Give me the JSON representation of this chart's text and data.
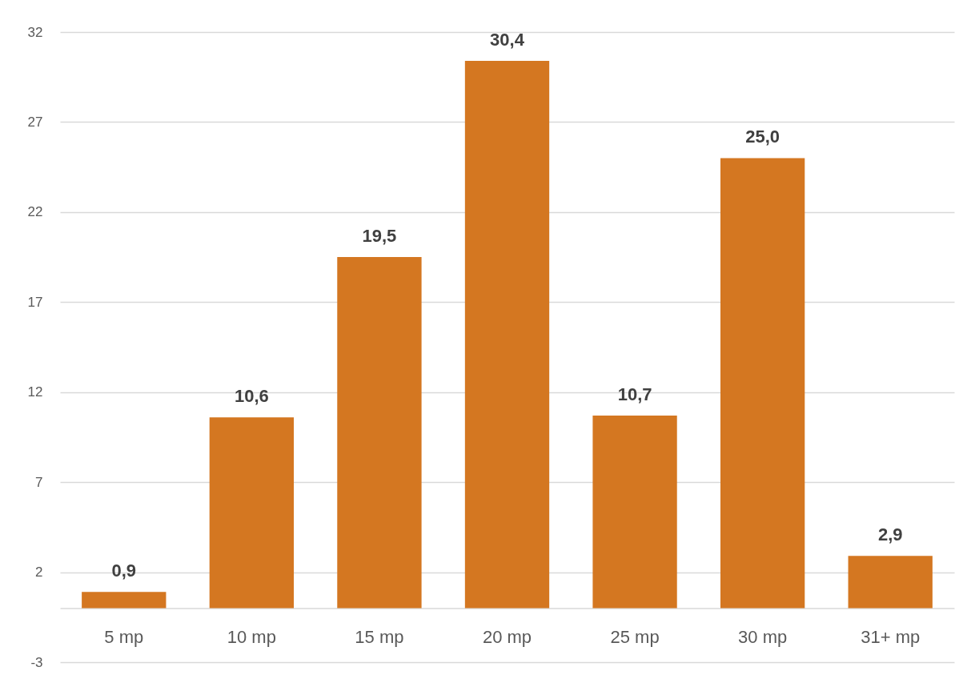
{
  "chart_data": {
    "type": "bar",
    "categories": [
      "5 mp",
      "10 mp",
      "15 mp",
      "20 mp",
      "25 mp",
      "30 mp",
      "31+ mp"
    ],
    "values": [
      0.9,
      10.6,
      19.5,
      30.4,
      10.7,
      25.0,
      2.9
    ],
    "value_labels": [
      "0,9",
      "10,6",
      "19,5",
      "30,4",
      "10,7",
      "25,0",
      "2,9"
    ],
    "color": "#d47721",
    "ylim": [
      -3,
      32
    ],
    "yticks": [
      -3,
      2,
      7,
      12,
      17,
      22,
      27,
      32
    ],
    "grid": "y"
  }
}
